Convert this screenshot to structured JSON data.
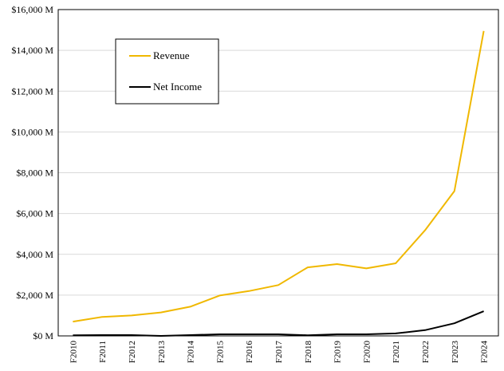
{
  "chart_data": {
    "type": "line",
    "title": "",
    "xlabel": "",
    "ylabel": "",
    "categories": [
      "F2010",
      "F2011",
      "F2012",
      "F2013",
      "F2014",
      "F2015",
      "F2016",
      "F2017",
      "F2018",
      "F2019",
      "F2020",
      "F2021",
      "F2022",
      "F2023",
      "F2024"
    ],
    "ylim": [
      0,
      16000
    ],
    "ytick_values": [
      0,
      2000,
      4000,
      6000,
      8000,
      10000,
      12000,
      14000,
      16000
    ],
    "ytick_labels": [
      "$0 M",
      "$2,000 M",
      "$4,000 M",
      "$6,000 M",
      "$8,000 M",
      "$10,000 M",
      "$12,000 M",
      "$14,000 M",
      "$16,000 M"
    ],
    "grid": "horizontal",
    "legend_position": "top-left",
    "series": [
      {
        "name": "Revenue",
        "color": "#F0B800",
        "values": [
          700,
          930,
          1000,
          1150,
          1430,
          1980,
          2200,
          2490,
          3360,
          3520,
          3310,
          3560,
          5180,
          7100,
          14950
        ]
      },
      {
        "name": "Net Income",
        "color": "#000000",
        "values": [
          30,
          40,
          40,
          0,
          40,
          80,
          80,
          80,
          30,
          80,
          80,
          120,
          280,
          620,
          1210
        ]
      }
    ]
  }
}
